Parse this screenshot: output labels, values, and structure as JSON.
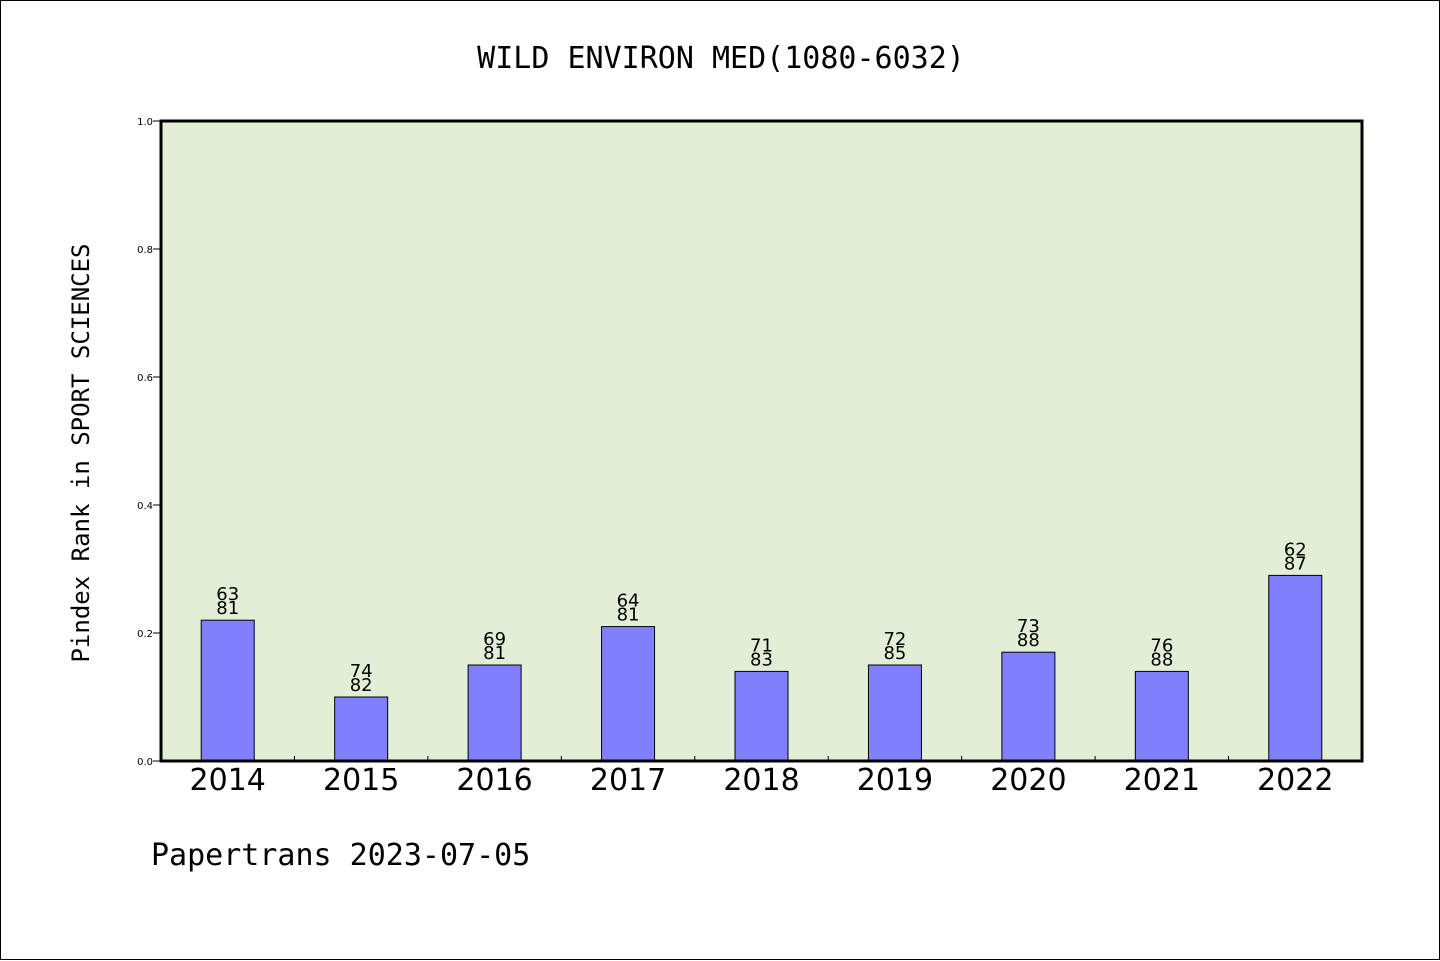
{
  "chart_data": {
    "type": "bar",
    "title": "WILD ENVIRON MED(1080-6032)",
    "ylabel": "Pindex Rank in SPORT SCIENCES",
    "xlabel": "",
    "categories": [
      "2014",
      "2015",
      "2016",
      "2017",
      "2018",
      "2019",
      "2020",
      "2021",
      "2022"
    ],
    "values": [
      0.22,
      0.1,
      0.15,
      0.21,
      0.14,
      0.15,
      0.17,
      0.14,
      0.29
    ],
    "bar_labels": [
      [
        "63",
        "81"
      ],
      [
        "74",
        "82"
      ],
      [
        "69",
        "81"
      ],
      [
        "64",
        "81"
      ],
      [
        "71",
        "83"
      ],
      [
        "72",
        "85"
      ],
      [
        "73",
        "88"
      ],
      [
        "76",
        "88"
      ],
      [
        "62",
        "87"
      ]
    ],
    "ylim": [
      0.0,
      1.0
    ],
    "yticks": [
      "0.0",
      "0.2",
      "0.4",
      "0.6",
      "0.8",
      "1.0"
    ],
    "grid": false,
    "colors": {
      "plot_background": "#e2efd6",
      "bar_fill": "#8080ff",
      "bar_stroke": "#000000",
      "axis": "#000000"
    }
  },
  "footer": {
    "text": "Papertrans 2023-07-05"
  }
}
